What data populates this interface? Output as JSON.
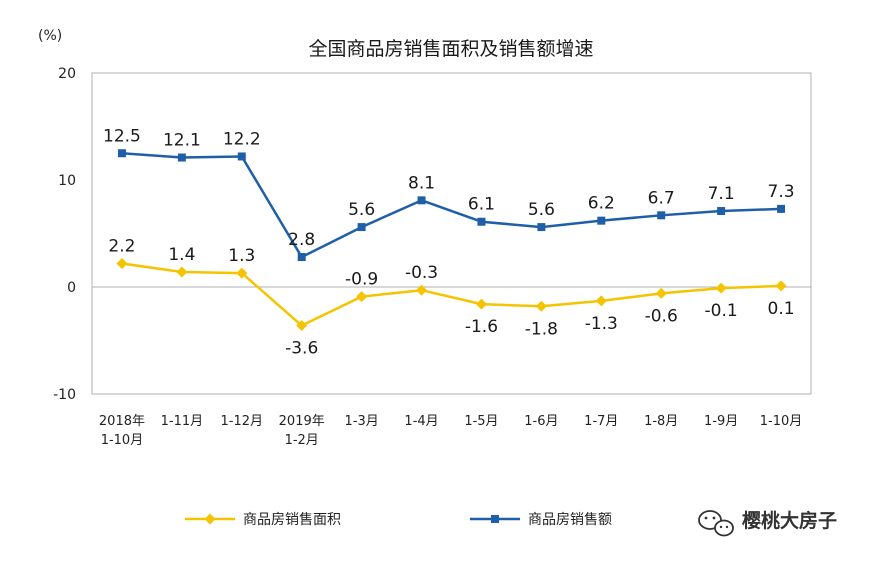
{
  "chart_data": {
    "type": "line",
    "title": "全国商品房销售面积及销售额增速",
    "unit_label": "(%)",
    "ylim": [
      -10,
      20
    ],
    "yticks": [
      20,
      10,
      0,
      -10
    ],
    "categories": [
      [
        "2018年",
        "1-10月"
      ],
      [
        "1-11月"
      ],
      [
        "1-12月"
      ],
      [
        "2019年",
        "1-2月"
      ],
      [
        "1-3月"
      ],
      [
        "1-4月"
      ],
      [
        "1-5月"
      ],
      [
        "1-6月"
      ],
      [
        "1-7月"
      ],
      [
        "1-8月"
      ],
      [
        "1-9月"
      ],
      [
        "1-10月"
      ]
    ],
    "series": [
      {
        "name": "商品房销售面积",
        "color": "#f5c400",
        "marker": "diamond",
        "values": [
          2.2,
          1.4,
          1.3,
          -3.6,
          -0.9,
          -0.3,
          -1.6,
          -1.8,
          -1.3,
          -0.6,
          -0.1,
          0.1
        ],
        "labels": [
          "2.2",
          "1.4",
          "1.3",
          "-3.6",
          "-0.9",
          "-0.3",
          "-1.6",
          "-1.8",
          "-1.3",
          "-0.6",
          "-0.1",
          "0.1"
        ],
        "label_position": [
          "above",
          "above",
          "above",
          "below",
          "above",
          "above",
          "below",
          "below",
          "below",
          "below",
          "below",
          "below"
        ]
      },
      {
        "name": "商品房销售额",
        "color": "#1f5fa8",
        "marker": "square",
        "values": [
          12.5,
          12.1,
          12.2,
          2.8,
          5.6,
          8.1,
          6.1,
          5.6,
          6.2,
          6.7,
          7.1,
          7.3
        ],
        "labels": [
          "12.5",
          "12.1",
          "12.2",
          "2.8",
          "5.6",
          "8.1",
          "6.1",
          "5.6",
          "6.2",
          "6.7",
          "7.1",
          "7.3"
        ],
        "label_position": [
          "above",
          "above",
          "above",
          "above",
          "above",
          "above",
          "above",
          "above",
          "above",
          "above",
          "above",
          "above"
        ]
      }
    ],
    "legend": "bottom"
  },
  "watermark": {
    "text": "樱桃大房子",
    "icon": "wechat-icon"
  }
}
